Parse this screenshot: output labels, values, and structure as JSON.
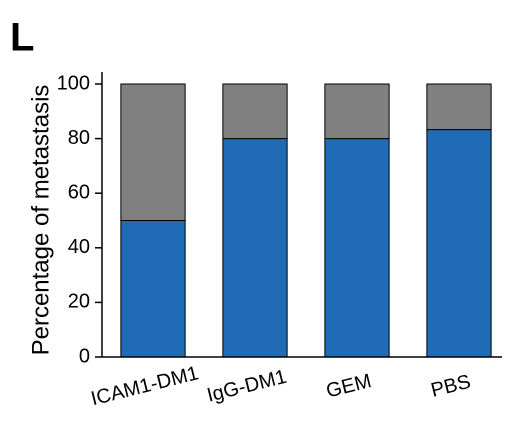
{
  "chart_data": {
    "type": "stacked-bar",
    "panel_label": "L",
    "y_label": "Percentage of metastasis",
    "categories": [
      "ICAM1-DM1",
      "IgG-DM1",
      "GEM",
      "PBS"
    ],
    "series": [
      {
        "color": "#1f6bb6",
        "values": [
          50,
          80,
          80,
          83.3
        ]
      },
      {
        "color": "#808080",
        "values": [
          50,
          20,
          20,
          16.7
        ]
      }
    ],
    "ylim": [
      0,
      100
    ],
    "yticks": [
      0,
      20,
      40,
      60,
      80,
      100
    ]
  }
}
